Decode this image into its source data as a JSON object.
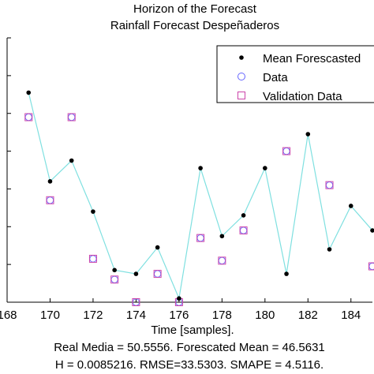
{
  "chart_data": {
    "type": "line",
    "title": "Horizon of the Forecast",
    "subtitle": "Rainfall Forecast Despeñaderos",
    "xlabel": "Time [samples].",
    "ylabel": "",
    "xlim": [
      168,
      185
    ],
    "ylim": [
      0,
      70
    ],
    "xticks": [
      168,
      170,
      172,
      174,
      176,
      178,
      180,
      182,
      184
    ],
    "yticks": [
      0,
      10,
      20,
      30,
      40,
      50,
      60,
      70
    ],
    "grid": false,
    "legend_position": "top-right",
    "x": [
      169,
      170,
      171,
      172,
      173,
      174,
      175,
      176,
      177,
      178,
      179,
      180,
      181,
      182,
      183,
      184,
      185
    ],
    "series": [
      {
        "name": "Mean Forescasted",
        "style": "line-with-dots",
        "line_color": "#7fe0e0",
        "marker_color": "#000000",
        "values": [
          55.5,
          32.0,
          37.5,
          24.0,
          8.5,
          7.5,
          14.5,
          1.0,
          35.5,
          17.5,
          23.0,
          35.5,
          7.5,
          44.5,
          14.0,
          25.5,
          19.0
        ]
      },
      {
        "name": "Data",
        "style": "marker",
        "marker": "circle",
        "color": "#6666ff",
        "values": [
          49.0,
          27.0,
          49.0,
          11.5,
          6.0,
          0.0,
          7.5,
          0.0,
          17.0,
          11.0,
          19.0,
          null,
          40.0,
          null,
          31.0,
          null,
          9.5
        ]
      },
      {
        "name": "Validation Data",
        "style": "marker",
        "marker": "square",
        "color": "#cc44aa",
        "values": [
          49.0,
          27.0,
          49.0,
          11.5,
          6.0,
          0.0,
          7.5,
          0.0,
          17.0,
          11.0,
          19.0,
          null,
          40.0,
          null,
          31.0,
          null,
          9.5
        ]
      }
    ],
    "annotations": [
      "Real Media = 50.5556. Forescated Mean = 46.5631",
      "H = 0.0085216. RMSE=33.5303. SMAPE = 4.5116."
    ]
  }
}
